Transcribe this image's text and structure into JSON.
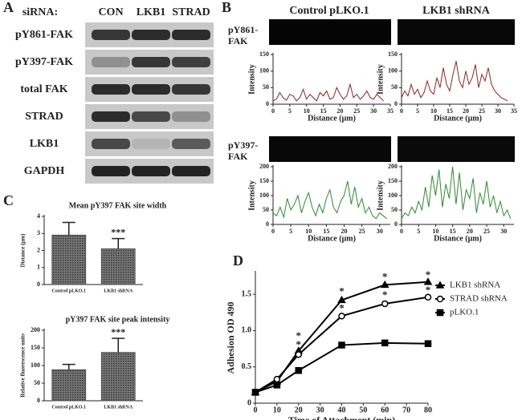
{
  "panel_labels": [
    "A",
    "B",
    "C",
    "D"
  ],
  "blot": {
    "header": "siRNA:",
    "lanes": [
      "CON",
      "LKB1",
      "STRAD"
    ],
    "rows": [
      "pY861-FAK",
      "pY397-FAK",
      "total FAK",
      "STRAD",
      "LKB1",
      "GAPDH"
    ]
  },
  "imaging": {
    "columns": [
      "Control pLKO.1",
      "LKB1 shRNA"
    ],
    "rows": [
      "pY861-FAK",
      "pY397-FAK"
    ]
  },
  "chart_data": [
    {
      "type": "line",
      "xlabel": "Distance (μm)",
      "ylabel": "Intensity",
      "color": "#8b2323",
      "x": [
        0,
        1,
        2,
        3,
        4,
        5,
        6,
        7,
        8,
        9,
        10,
        11,
        12,
        13,
        14,
        15,
        16,
        17,
        18,
        19,
        20,
        21,
        22,
        23,
        24,
        25,
        26,
        27,
        28,
        29,
        30,
        31,
        32,
        33
      ],
      "values": [
        10,
        15,
        35,
        20,
        12,
        30,
        25,
        10,
        20,
        45,
        15,
        30,
        20,
        10,
        35,
        25,
        40,
        15,
        20,
        50,
        30,
        15,
        25,
        60,
        20,
        30,
        15,
        25,
        40,
        20,
        15,
        30,
        20,
        10
      ],
      "xlim": [
        0,
        35
      ],
      "xticks": [
        0,
        5,
        10,
        15,
        20,
        25,
        30,
        35
      ],
      "ylim": [
        0,
        150
      ],
      "yticks": [
        0,
        50,
        100,
        150
      ]
    },
    {
      "type": "line",
      "xlabel": "Distance (μm)",
      "ylabel": "Intensity",
      "color": "#8b2323",
      "x": [
        0,
        1,
        2,
        3,
        4,
        5,
        6,
        7,
        8,
        9,
        10,
        11,
        12,
        13,
        14,
        15,
        16,
        17,
        18,
        19,
        20,
        21,
        22,
        23,
        24,
        25,
        26,
        27,
        28,
        29,
        30,
        31,
        32,
        33
      ],
      "values": [
        20,
        40,
        25,
        60,
        30,
        45,
        20,
        35,
        70,
        40,
        30,
        80,
        50,
        110,
        60,
        40,
        90,
        130,
        70,
        50,
        100,
        60,
        80,
        120,
        50,
        90,
        70,
        110,
        60,
        40,
        30,
        20,
        15,
        10
      ],
      "xlim": [
        0,
        35
      ],
      "xticks": [
        0,
        5,
        10,
        15,
        20,
        25,
        30,
        35
      ],
      "ylim": [
        0,
        150
      ],
      "yticks": [
        0,
        50,
        100,
        150
      ]
    },
    {
      "type": "line",
      "xlabel": "Distance (μm)",
      "ylabel": "Intensity",
      "color": "#2e8b2e",
      "x": [
        0,
        1,
        2,
        3,
        4,
        5,
        6,
        7,
        8,
        9,
        10,
        11,
        12,
        13,
        14,
        15,
        16,
        17,
        18,
        19,
        20,
        21,
        22,
        23,
        24,
        25,
        26,
        27,
        28,
        29,
        30,
        31,
        32
      ],
      "values": [
        40,
        30,
        60,
        25,
        90,
        50,
        70,
        100,
        40,
        80,
        110,
        60,
        30,
        70,
        40,
        90,
        120,
        60,
        40,
        80,
        100,
        150,
        70,
        130,
        60,
        90,
        40,
        60,
        30,
        20,
        40,
        30,
        20
      ],
      "xlim": [
        0,
        33
      ],
      "xticks": [
        0,
        5,
        10,
        15,
        20,
        25,
        30
      ],
      "ylim": [
        0,
        200
      ],
      "yticks": [
        0,
        50,
        100,
        150,
        200
      ]
    },
    {
      "type": "line",
      "xlabel": "Distance (μm)",
      "ylabel": "Intensity",
      "color": "#2e8b2e",
      "x": [
        0,
        1,
        2,
        3,
        4,
        5,
        6,
        7,
        8,
        9,
        10,
        11,
        12,
        13,
        14,
        15,
        16,
        17,
        18,
        19,
        20,
        21,
        22,
        23,
        24,
        25,
        26,
        27,
        28,
        29,
        30,
        31,
        32
      ],
      "values": [
        20,
        40,
        30,
        60,
        40,
        80,
        50,
        130,
        60,
        170,
        100,
        190,
        60,
        140,
        90,
        200,
        70,
        180,
        50,
        120,
        90,
        160,
        40,
        110,
        70,
        150,
        60,
        100,
        40,
        80,
        30,
        50,
        20
      ],
      "xlim": [
        0,
        33
      ],
      "xticks": [
        0,
        5,
        10,
        15,
        20,
        25,
        30
      ],
      "ylim": [
        0,
        200
      ],
      "yticks": [
        0,
        50,
        100,
        150,
        200
      ]
    },
    {
      "type": "bar",
      "title": "Mean pY397 FAK site width",
      "ylabel": "Distance (μm)",
      "categories": [
        "Control pLKO.1",
        "LKB1 shRNA"
      ],
      "values": [
        2.9,
        2.1
      ],
      "errors": [
        0.75,
        0.6
      ],
      "annotation": "***",
      "color": "#555555",
      "ylim": [
        0,
        4
      ],
      "yticks": [
        0,
        1,
        2,
        3,
        4
      ]
    },
    {
      "type": "bar",
      "title": "pY397 FAK site peak intensity",
      "ylabel": "Relative fluorescence units",
      "categories": [
        "Control pLKO.1",
        "LKB1 shRNA"
      ],
      "values": [
        88,
        137
      ],
      "errors": [
        15,
        40
      ],
      "annotation": "***",
      "color": "#555555",
      "ylim": [
        0,
        200
      ],
      "yticks": [
        0,
        50,
        100,
        150,
        200
      ]
    },
    {
      "type": "linemarker",
      "xlabel": "Time of Attachment (min)",
      "ylabel": "Adhesion OD 490",
      "x": [
        0,
        10,
        20,
        40,
        60,
        80
      ],
      "series": [
        {
          "name": "LKB1 shRNA",
          "marker": "triangle",
          "color": "#000000",
          "values": [
            0.15,
            0.3,
            0.72,
            1.42,
            1.63,
            1.67
          ]
        },
        {
          "name": "STRAD shRNA",
          "marker": "circle",
          "color": "#000000",
          "values": [
            0.15,
            0.33,
            0.67,
            1.2,
            1.37,
            1.46
          ]
        },
        {
          "name": "pLKO.1",
          "marker": "square",
          "color": "#000000",
          "values": [
            0.15,
            0.25,
            0.45,
            0.8,
            0.83,
            0.82
          ]
        }
      ],
      "annotations": [
        {
          "x": 20,
          "y": 0.95,
          "text": "*"
        },
        {
          "x": 20,
          "y": 0.83,
          "text": "*"
        },
        {
          "x": 40,
          "y": 1.56,
          "text": "*"
        },
        {
          "x": 40,
          "y": 1.33,
          "text": "*"
        },
        {
          "x": 60,
          "y": 1.76,
          "text": "*"
        },
        {
          "x": 60,
          "y": 1.51,
          "text": "*"
        },
        {
          "x": 80,
          "y": 1.79,
          "text": "*"
        },
        {
          "x": 80,
          "y": 1.58,
          "text": "*"
        }
      ],
      "xlim": [
        0,
        80
      ],
      "xticks": [
        0,
        10,
        20,
        30,
        40,
        50,
        60,
        70,
        80
      ],
      "ylim": [
        0,
        1.8
      ],
      "yticks": [
        0,
        0.5,
        {
          "value": 1,
          "label": "1.0"
        },
        1.5
      ]
    }
  ]
}
